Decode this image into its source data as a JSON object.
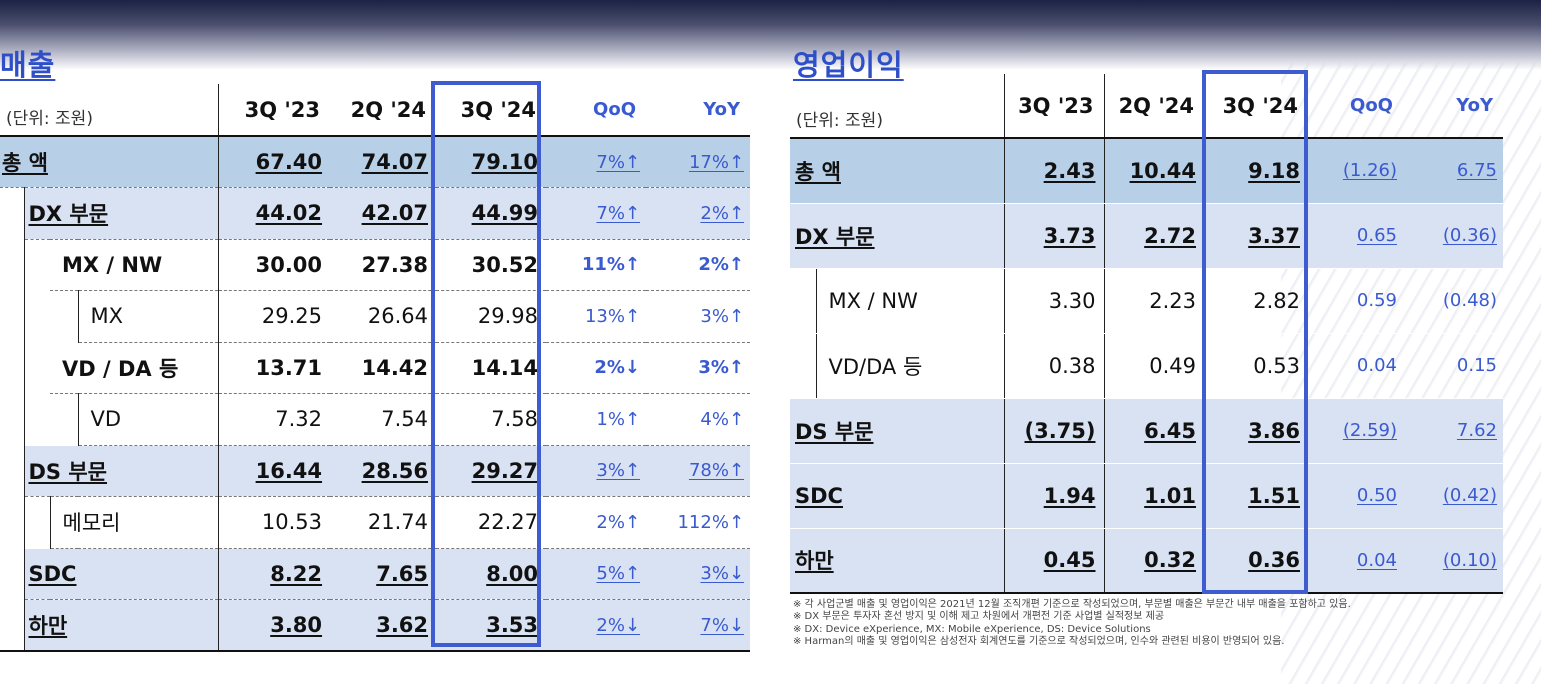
{
  "revenue": {
    "title": "매출",
    "unit": "(단위: 조원)",
    "headers": [
      "3Q '23",
      "2Q '24",
      "3Q '24",
      "QoQ",
      "YoY"
    ],
    "rows": [
      {
        "label": "총 액",
        "values": [
          "67.40",
          "74.07",
          "79.10"
        ],
        "qoq": "7%↑",
        "yoy": "17%↑"
      },
      {
        "label": "DX 부문",
        "values": [
          "44.02",
          "42.07",
          "44.99"
        ],
        "qoq": "7%↑",
        "yoy": "2%↑"
      },
      {
        "label": "MX / NW",
        "values": [
          "30.00",
          "27.38",
          "30.52"
        ],
        "qoq": "11%↑",
        "yoy": "2%↑"
      },
      {
        "label": "MX",
        "values": [
          "29.25",
          "26.64",
          "29.98"
        ],
        "qoq": "13%↑",
        "yoy": "3%↑"
      },
      {
        "label": "VD / DA 등",
        "values": [
          "13.71",
          "14.42",
          "14.14"
        ],
        "qoq": "2%↓",
        "yoy": "3%↑"
      },
      {
        "label": "VD",
        "values": [
          "7.32",
          "7.54",
          "7.58"
        ],
        "qoq": "1%↑",
        "yoy": "4%↑"
      },
      {
        "label": "DS 부문",
        "values": [
          "16.44",
          "28.56",
          "29.27"
        ],
        "qoq": "3%↑",
        "yoy": "78%↑"
      },
      {
        "label": "메모리",
        "values": [
          "10.53",
          "21.74",
          "22.27"
        ],
        "qoq": "2%↑",
        "yoy": "112%↑"
      },
      {
        "label": "SDC",
        "values": [
          "8.22",
          "7.65",
          "8.00"
        ],
        "qoq": "5%↑",
        "yoy": "3%↓"
      },
      {
        "label": "하만",
        "values": [
          "3.80",
          "3.62",
          "3.53"
        ],
        "qoq": "2%↓",
        "yoy": "7%↓"
      }
    ]
  },
  "operating_profit": {
    "title": "영업이익",
    "unit": "(단위: 조원)",
    "headers": [
      "3Q '23",
      "2Q '24",
      "3Q '24",
      "QoQ",
      "YoY"
    ],
    "rows": [
      {
        "label": "총 액",
        "values": [
          "2.43",
          "10.44",
          "9.18"
        ],
        "qoq": "(1.26)",
        "yoy": "6.75"
      },
      {
        "label": "DX 부문",
        "values": [
          "3.73",
          "2.72",
          "3.37"
        ],
        "qoq": "0.65",
        "yoy": "(0.36)"
      },
      {
        "label": "MX / NW",
        "values": [
          "3.30",
          "2.23",
          "2.82"
        ],
        "qoq": "0.59",
        "yoy": "(0.48)"
      },
      {
        "label": "VD/DA 등",
        "values": [
          "0.38",
          "0.49",
          "0.53"
        ],
        "qoq": "0.04",
        "yoy": "0.15"
      },
      {
        "label": "DS 부문",
        "values": [
          "(3.75)",
          "6.45",
          "3.86"
        ],
        "qoq": "(2.59)",
        "yoy": "7.62"
      },
      {
        "label": "SDC",
        "values": [
          "1.94",
          "1.01",
          "1.51"
        ],
        "qoq": "0.50",
        "yoy": "(0.42)"
      },
      {
        "label": "하만",
        "values": [
          "0.45",
          "0.32",
          "0.36"
        ],
        "qoq": "0.04",
        "yoy": "(0.10)"
      }
    ]
  },
  "notes": [
    "※ 각 사업군별 매출 및 영업이익은 2021년 12월 조직개편 기준으로 작성되었으며, 부문별 매출은 부문간 내부 매출을 포함하고 있음.",
    "※ DX 부문은 투자자 혼선 방지 및 이해 제고 차원에서 개편전 기준 사업별 실적정보 제공",
    "※ DX: Device eXperience, MX: Mobile eXperience, DS: Device Solutions",
    "※ Harman의 매출 및 영업이익은 삼성전자 회계연도를 기준으로 작성되었으며, 인수와 관련된 비용이 반영되어 있음."
  ],
  "colors": {
    "accent": "#3f5bd0",
    "highlight_strong": "#b8cfe8",
    "highlight": "#d9e2f2"
  }
}
